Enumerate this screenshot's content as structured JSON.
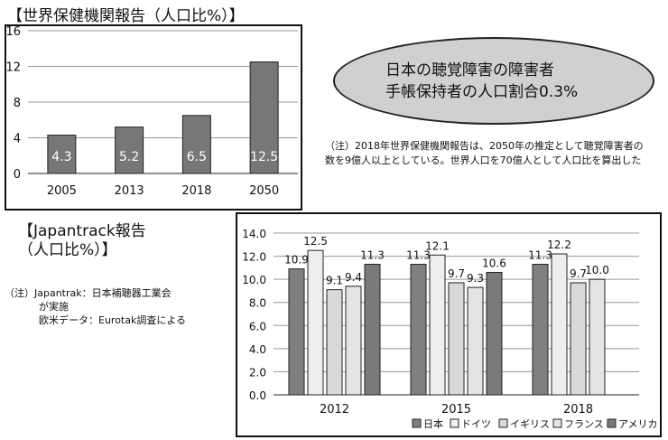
{
  "who_title": "【世界保健機関報告（人口比%）】",
  "ellipse_line1": "日本の聴覚障害の障害者",
  "ellipse_line2": "手帳保持者の人口割合0.3%",
  "note_who": "（注）2018年世界保健機関報告は、2050年の推定として聴覚障害者の数を9億人以上としている。世界人口を70億人として人口比を算出した",
  "jt_title_line1": "【Japantrack報告",
  "jt_title_line2": "（人口比%）】",
  "note_jt_line1": "（注）Japantrak：日本補聴器工業会",
  "note_jt_line2": "が実施",
  "note_jt_line3": "欧米データ：Eurotak調査による",
  "chart_data": [
    {
      "type": "bar",
      "categories": [
        "2005",
        "2013",
        "2018",
        "2050"
      ],
      "values": [
        4.3,
        5.2,
        6.5,
        12.5
      ],
      "value_labels": [
        "4.3",
        "5.2",
        "6.5",
        "12.5"
      ],
      "ylim": [
        0,
        16
      ],
      "yticks": [
        "0",
        "4",
        "8",
        "12",
        "16"
      ],
      "grid": true,
      "bar_color": "#777777"
    },
    {
      "type": "bar",
      "categories": [
        "2012",
        "2015",
        "2018"
      ],
      "yticks": [
        "0.0",
        "2.0",
        "4.0",
        "6.0",
        "8.0",
        "10.0",
        "12.0",
        "14.0"
      ],
      "ylim": [
        0,
        14
      ],
      "grid": true,
      "legend_position": "bottom",
      "series": [
        {
          "name": "日本",
          "color": "#808080",
          "values": [
            10.9,
            11.3,
            11.3
          ],
          "labels": [
            "10.9",
            "11.3",
            "11.3"
          ]
        },
        {
          "name": "ドイツ",
          "color": "#eeeeee",
          "values": [
            12.5,
            12.1,
            12.2
          ],
          "labels": [
            "12.5",
            "12.1",
            "12.2"
          ]
        },
        {
          "name": "イギリス",
          "color": "#d9d9d9",
          "values": [
            9.1,
            9.7,
            9.7
          ],
          "labels": [
            "9.1",
            "9.7",
            "9.7"
          ]
        },
        {
          "name": "フランス",
          "color": "#e4e4e4",
          "values": [
            9.4,
            9.3,
            10.0
          ],
          "labels": [
            "9.4",
            "9.3",
            "10.0"
          ]
        },
        {
          "name": "アメリカ",
          "color": "#7a7a7a",
          "values": [
            11.3,
            10.6,
            null
          ],
          "labels": [
            "11.3",
            "10.6",
            ""
          ]
        }
      ]
    }
  ]
}
